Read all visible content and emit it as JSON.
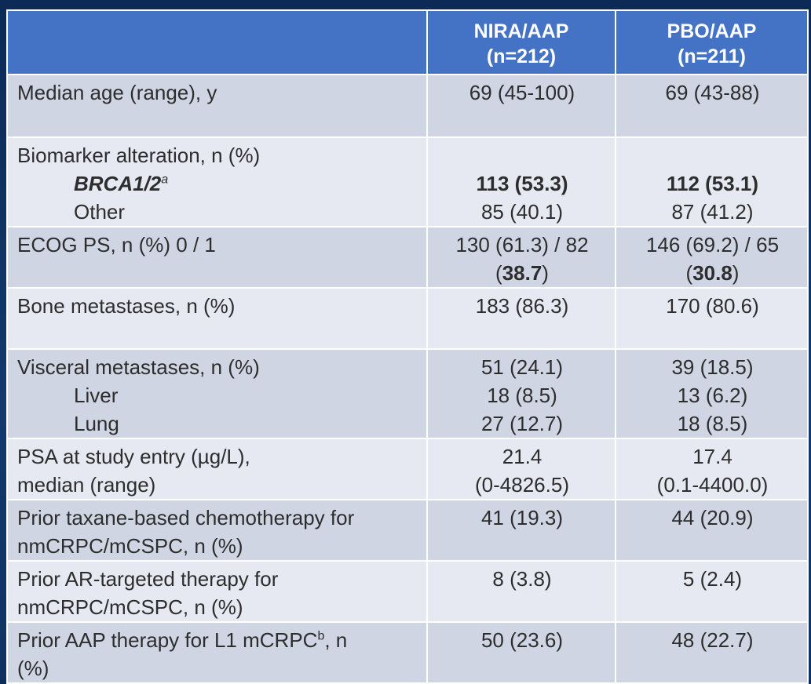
{
  "header": {
    "col1": "",
    "col2_line1": "NIRA/AAP",
    "col2_line2": "(n=212)",
    "col3_line1": "PBO/AAP",
    "col3_line2": "(n=211)"
  },
  "rows": {
    "age": {
      "label": "Median age (range), y",
      "v1": "69 (45-100)",
      "v2": "69 (43-88)"
    },
    "biomarker": {
      "label": "Biomarker alteration, n (%)",
      "brca_label": "BRCA1/2",
      "brca_sup": "a",
      "brca_v1": "113 (53.3)",
      "brca_v2": "112 (53.1)",
      "other_label": "Other",
      "other_v1": "85 (40.1)",
      "other_v2": "87 (41.2)"
    },
    "ecog": {
      "label": "ECOG PS, n (%) 0 / 1",
      "v1_line1": "130 (61.3) / 82",
      "v1_pre": "(",
      "v1_bold": "38.7",
      "v1_post": ")",
      "v2_line1": "146 (69.2) / 65",
      "v2_pre": "(",
      "v2_bold": "30.8",
      "v2_post": ")"
    },
    "bone": {
      "label": "Bone metastases, n (%)",
      "v1": "183 (86.3)",
      "v2": "170 (80.6)"
    },
    "visceral": {
      "label": "Visceral metastases, n (%)",
      "v1": "51 (24.1)",
      "v2": "39 (18.5)",
      "liver_label": "Liver",
      "liver_v1": "18 (8.5)",
      "liver_v2": "13 (6.2)",
      "lung_label": "Lung",
      "lung_v1": "27 (12.7)",
      "lung_v2": "18 (8.5)"
    },
    "psa": {
      "label_line1": "PSA at study entry (µg/L),",
      "label_line2": "median (range)",
      "v1_line1": "21.4",
      "v1_line2": "(0-4826.5)",
      "v2_line1": "17.4",
      "v2_line2": "(0.1-4400.0)"
    },
    "taxane": {
      "label_line1": "Prior taxane-based chemotherapy for",
      "label_line2": "nmCRPC/mCSPC, n (%)",
      "v1": "41 (19.3)",
      "v2": "44 (20.9)"
    },
    "ar": {
      "label_line1": "Prior AR-targeted therapy for",
      "label_line2": "nmCRPC/mCSPC, n (%)",
      "v1": "8 (3.8)",
      "v2": "5 (2.4)"
    },
    "aap": {
      "label_pre": "Prior AAP therapy for L1 mCRPC",
      "label_sup": "b",
      "label_post": ", n",
      "label_line2": "(%)",
      "v1": "50 (23.6)",
      "v2": "48 (22.7)"
    }
  },
  "colors": {
    "header_bg": "#4472c4",
    "row_dark": "#cfd5e3",
    "row_light": "#e6e9f1",
    "slide_bg": "#0d2c5a"
  }
}
